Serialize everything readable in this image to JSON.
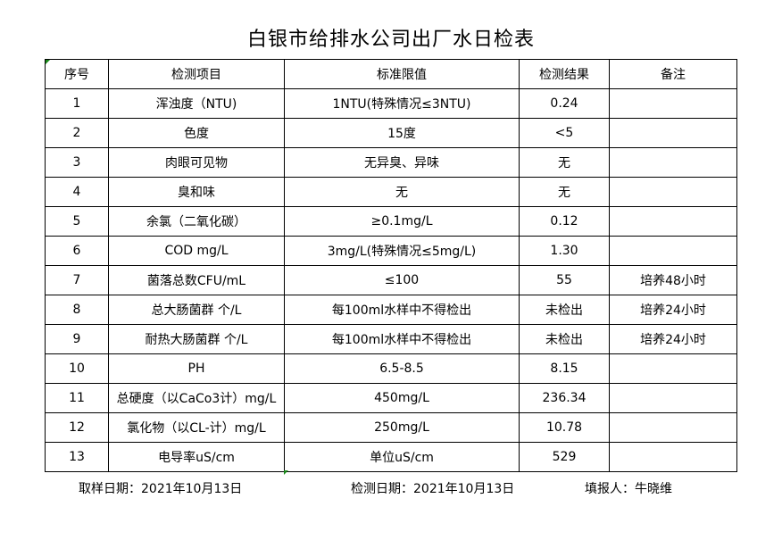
{
  "title": "白银市给排水公司出厂水日检表",
  "headers": [
    "序号",
    "检测项目",
    "标准限值",
    "检测结果",
    "备注"
  ],
  "rows": [
    [
      "1",
      "浑浊度（NTU)",
      "1NTU(特殊情况≤3NTU)",
      "0.24",
      ""
    ],
    [
      "2",
      "色度",
      "15度",
      "<5",
      ""
    ],
    [
      "3",
      "肉眼可见物",
      "无异臭、异味",
      "无",
      ""
    ],
    [
      "4",
      "臭和味",
      "无",
      "无",
      ""
    ],
    [
      "5",
      "余氯（二氧化碳）",
      "≥0.1mg/L",
      "0.12",
      ""
    ],
    [
      "6",
      "COD        mg/L",
      "3mg/L(特殊情况≤5mg/L)",
      "1.30",
      ""
    ],
    [
      "7",
      "菌落总数CFU/mL",
      "≤100",
      "55",
      "培养48小时"
    ],
    [
      "8",
      "总大肠菌群 个/L",
      "每100ml水样中不得检出",
      "未检出",
      "培养24小时"
    ],
    [
      "9",
      "耐热大肠菌群 个/L",
      "每100ml水样中不得检出",
      "未检出",
      "培养24小时"
    ],
    [
      "10",
      "PH",
      "6.5-8.5",
      "8.15",
      ""
    ],
    [
      "11",
      "总硬度（以CaCo3计）mg/L",
      "450mg/L",
      "236.34",
      ""
    ],
    [
      "12",
      "氯化物（以CL-计）mg/L",
      "250mg/L",
      "10.78",
      ""
    ],
    [
      "13",
      "电导率uS/cm",
      "单位uS/cm",
      "529",
      ""
    ]
  ],
  "footer": {
    "sampling_date": "取样日期：2021年10月13日",
    "test_date": "检测日期：2021年10月13日",
    "reporter": "填报人：牛晓维"
  },
  "colors": {
    "cell_marker": "#1a8a1a"
  }
}
